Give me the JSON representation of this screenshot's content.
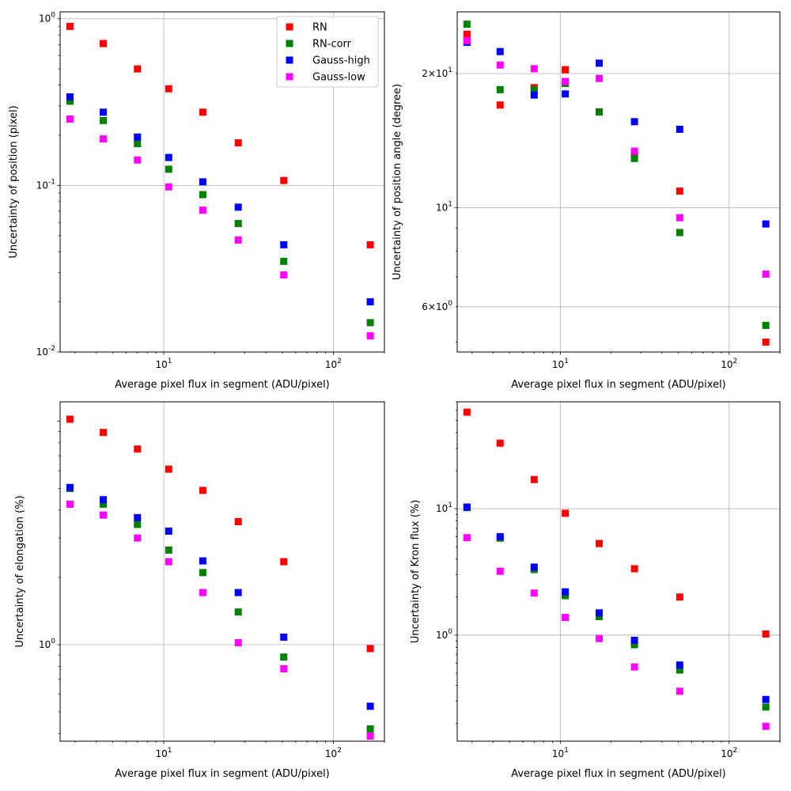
{
  "colors": {
    "RN": "#ff0000",
    "RN-corr": "#008000",
    "Gauss-high": "#0000ff",
    "Gauss-low": "#ff00ff",
    "grid": "#b0b0b0",
    "frame": "#000000"
  },
  "legend": {
    "placement": "top-right of first panel",
    "entries": [
      "RN",
      "RN-corr",
      "Gauss-high",
      "Gauss-low"
    ]
  },
  "chart_data": [
    {
      "type": "scatter",
      "xscale": "log",
      "yscale": "log",
      "grid": true,
      "xlabel": "Average pixel flux in segment (ADU/pixel)",
      "ylabel": "Uncertainty of position (pixel)",
      "xlim": [
        2.45,
        200
      ],
      "ylim": [
        0.01,
        1.1
      ],
      "x_tick_labels": [
        "10^1",
        "10^2"
      ],
      "y_tick_labels": [
        "10^-2",
        "10^-1",
        "10^0"
      ],
      "x": [
        2.8,
        4.4,
        7.0,
        10.7,
        17.0,
        27.5,
        51.0,
        165.0
      ],
      "series": [
        {
          "name": "RN",
          "values": [
            0.9,
            0.71,
            0.5,
            0.38,
            0.275,
            0.18,
            0.107,
            0.044
          ]
        },
        {
          "name": "RN-corr",
          "values": [
            0.32,
            0.245,
            0.178,
            0.125,
            0.088,
            0.059,
            0.035,
            0.015
          ]
        },
        {
          "name": "Gauss-high",
          "values": [
            0.34,
            0.275,
            0.195,
            0.147,
            0.105,
            0.074,
            0.044,
            0.02
          ]
        },
        {
          "name": "Gauss-low",
          "values": [
            0.25,
            0.19,
            0.142,
            0.098,
            0.071,
            0.047,
            0.029,
            0.0125
          ]
        }
      ]
    },
    {
      "type": "scatter",
      "xscale": "log",
      "yscale": "log",
      "grid": true,
      "xlabel": "Average pixel flux in segment (ADU/pixel)",
      "ylabel": "Uncertainty of position angle (degree)",
      "xlim": [
        2.45,
        200
      ],
      "ylim": [
        4.75,
        27.5
      ],
      "x_tick_labels": [
        "10^1",
        "10^2"
      ],
      "y_tick_labels": [
        "6×10^0",
        "10^1",
        "2×10^1"
      ],
      "x": [
        2.8,
        4.4,
        7.0,
        10.7,
        17.0,
        27.5,
        51.0,
        165.0
      ],
      "series": [
        {
          "name": "RN",
          "values": [
            24.5,
            17.0,
            18.6,
            20.4,
            16.4,
            13.2,
            10.9,
            5.0
          ]
        },
        {
          "name": "RN-corr",
          "values": [
            25.8,
            18.4,
            18.4,
            19.0,
            16.4,
            12.9,
            8.8,
            5.45
          ]
        },
        {
          "name": "Gauss-high",
          "values": [
            23.5,
            22.4,
            17.9,
            18.0,
            21.1,
            15.6,
            15.0,
            9.2
          ]
        },
        {
          "name": "Gauss-low",
          "values": [
            23.7,
            20.9,
            20.5,
            19.2,
            19.5,
            13.4,
            9.5,
            7.1
          ]
        }
      ]
    },
    {
      "type": "scatter",
      "xscale": "log",
      "yscale": "log",
      "grid": true,
      "xlabel": "Average pixel flux in segment (ADU/pixel)",
      "ylabel": "Uncertainty of elongation (%)",
      "xlim": [
        2.45,
        200
      ],
      "ylim": [
        0.37,
        12.2
      ],
      "x_tick_labels": [
        "10^1",
        "10^2"
      ],
      "y_tick_labels": [
        "10^0"
      ],
      "x": [
        2.8,
        4.4,
        7.0,
        10.7,
        17.0,
        27.5,
        51.0,
        165.0
      ],
      "series": [
        {
          "name": "RN",
          "values": [
            10.2,
            8.9,
            7.5,
            6.1,
            4.9,
            3.55,
            2.35,
            0.96
          ]
        },
        {
          "name": "RN-corr",
          "values": [
            5.0,
            4.25,
            3.45,
            2.65,
            2.1,
            1.4,
            0.88,
            0.42
          ]
        },
        {
          "name": "Gauss-high",
          "values": [
            5.05,
            4.45,
            3.7,
            3.22,
            2.37,
            1.71,
            1.08,
            0.53
          ]
        },
        {
          "name": "Gauss-low",
          "values": [
            4.25,
            3.8,
            3.0,
            2.35,
            1.71,
            1.02,
            0.78,
            0.39
          ]
        }
      ]
    },
    {
      "type": "scatter",
      "xscale": "log",
      "yscale": "log",
      "grid": true,
      "xlabel": "Average pixel flux in segment (ADU/pixel)",
      "ylabel": "Uncertainty of Kron flux (%)",
      "xlim": [
        2.45,
        200
      ],
      "ylim": [
        0.145,
        70
      ],
      "x_tick_labels": [
        "10^1",
        "10^2"
      ],
      "y_tick_labels": [
        "10^0",
        "10^1"
      ],
      "x": [
        2.8,
        4.4,
        7.0,
        10.7,
        17.0,
        27.5,
        51.0,
        165.0
      ],
      "series": [
        {
          "name": "RN",
          "values": [
            58.0,
            33.0,
            17.0,
            9.2,
            5.3,
            3.35,
            2.0,
            1.02
          ]
        },
        {
          "name": "RN-corr",
          "values": [
            10.2,
            5.85,
            3.3,
            2.05,
            1.4,
            0.84,
            0.53,
            0.27
          ]
        },
        {
          "name": "Gauss-high",
          "values": [
            10.3,
            6.0,
            3.45,
            2.2,
            1.5,
            0.91,
            0.58,
            0.31
          ]
        },
        {
          "name": "Gauss-low",
          "values": [
            5.9,
            3.2,
            2.15,
            1.38,
            0.94,
            0.56,
            0.36,
            0.19
          ]
        }
      ]
    }
  ]
}
